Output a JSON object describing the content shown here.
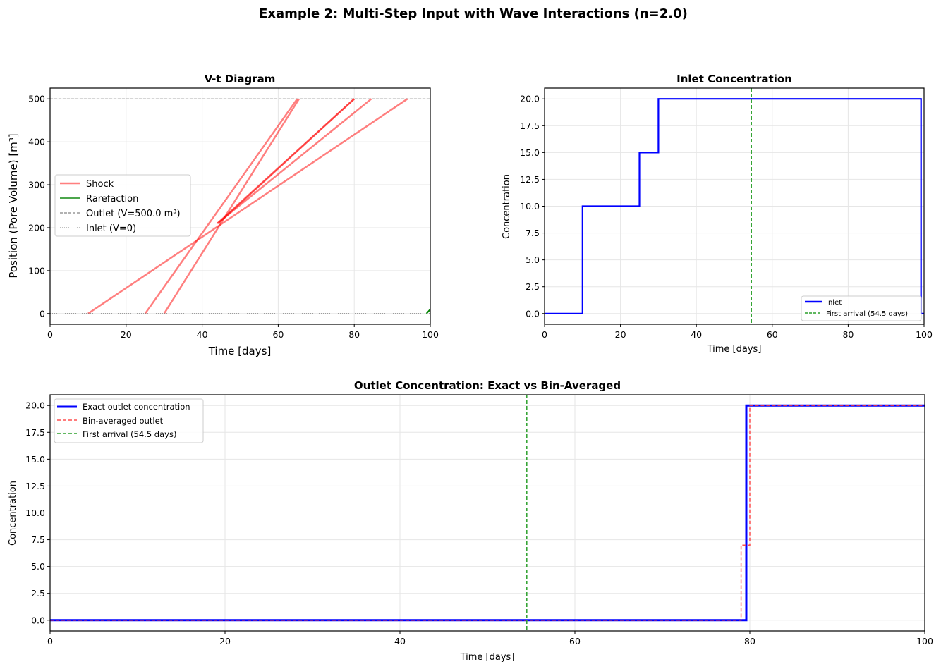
{
  "figure": {
    "suptitle": "Example 2: Multi-Step Input with Wave Interactions (n=2.0)"
  },
  "colors": {
    "shock": "#ff0000",
    "rarefaction": "#008000",
    "inlet": "#0000ff",
    "first_arrival": "#2ca02c",
    "bin_averaged": "#ff3333",
    "outlet_ref": "#666666",
    "inlet_ref": "#808080"
  },
  "chart_data": [
    {
      "id": "vt",
      "type": "line",
      "title": "V-t Diagram",
      "xlabel": "Time [days]",
      "ylabel": "Position (Pore Volume) [m³]",
      "xlim": [
        0,
        100
      ],
      "ylim": [
        -25,
        525
      ],
      "xticks": [
        0,
        20,
        40,
        60,
        80,
        100
      ],
      "yticks": [
        0,
        100,
        200,
        300,
        400,
        500
      ],
      "grid": true,
      "legend_position": "center left",
      "legend": [
        "Shock",
        "Rarefaction",
        "Outlet (V=500.0 m³)",
        "Inlet (V=0)"
      ],
      "series": [
        {
          "name": "Shock",
          "points": [
            [
              10,
              0
            ],
            [
              94,
              500
            ]
          ]
        },
        {
          "name": "Shock",
          "points": [
            [
              25,
              0
            ],
            [
              65,
              500
            ]
          ]
        },
        {
          "name": "Shock",
          "points": [
            [
              30,
              0
            ],
            [
              65.5,
              500
            ]
          ]
        },
        {
          "name": "Shock",
          "points": [
            [
              44,
              210
            ],
            [
              84.5,
              500
            ]
          ]
        },
        {
          "name": "Shock",
          "points": [
            [
              44,
              210
            ],
            [
              80,
              500
            ]
          ]
        },
        {
          "name": "Shock",
          "points": [
            [
              44.5,
              212
            ],
            [
              80,
              500
            ]
          ]
        },
        {
          "name": "Rarefaction",
          "points": [
            [
              99,
              0
            ],
            [
              100,
              10
            ]
          ]
        },
        {
          "name": "Outlet (V=500.0 m³)",
          "points": [
            [
              0,
              500
            ],
            [
              100,
              500
            ]
          ]
        },
        {
          "name": "Inlet (V=0)",
          "points": [
            [
              0,
              0
            ],
            [
              100,
              0
            ]
          ]
        }
      ]
    },
    {
      "id": "inlet",
      "type": "line",
      "title": "Inlet Concentration",
      "xlabel": "Time [days]",
      "ylabel": "Concentration",
      "xlim": [
        0,
        100
      ],
      "ylim": [
        -1,
        21
      ],
      "xticks": [
        0,
        20,
        40,
        60,
        80,
        100
      ],
      "yticks": [
        0.0,
        2.5,
        5.0,
        7.5,
        10.0,
        12.5,
        15.0,
        17.5,
        20.0
      ],
      "grid": true,
      "legend_position": "lower right",
      "legend": [
        "Inlet",
        "First arrival (54.5 days)"
      ],
      "series": [
        {
          "name": "Inlet",
          "x": [
            0,
            10,
            10,
            25,
            25,
            30,
            30,
            99.2,
            99.2,
            100
          ],
          "y": [
            0,
            0,
            10,
            10,
            15,
            15,
            20,
            20,
            0,
            0
          ]
        },
        {
          "name": "First arrival (54.5 days)",
          "vline": 54.5
        }
      ]
    },
    {
      "id": "outlet",
      "type": "line",
      "title": "Outlet Concentration: Exact vs Bin-Averaged",
      "xlabel": "Time [days]",
      "ylabel": "Concentration",
      "xlim": [
        0,
        100
      ],
      "ylim": [
        -1,
        21
      ],
      "xticks": [
        0,
        20,
        40,
        60,
        80,
        100
      ],
      "yticks": [
        0.0,
        2.5,
        5.0,
        7.5,
        10.0,
        12.5,
        15.0,
        17.5,
        20.0
      ],
      "grid": true,
      "legend_position": "upper left",
      "legend": [
        "Exact outlet concentration",
        "Bin-averaged outlet",
        "First arrival (54.5 days)"
      ],
      "series": [
        {
          "name": "Exact outlet concentration",
          "x": [
            0,
            79.6,
            79.6,
            100
          ],
          "y": [
            0,
            0,
            20,
            20
          ]
        },
        {
          "name": "Bin-averaged outlet",
          "x": [
            0,
            79,
            79,
            80,
            80,
            100
          ],
          "y": [
            0,
            0,
            7.0,
            7.0,
            20,
            20
          ]
        },
        {
          "name": "First arrival (54.5 days)",
          "vline": 54.5
        }
      ]
    }
  ]
}
